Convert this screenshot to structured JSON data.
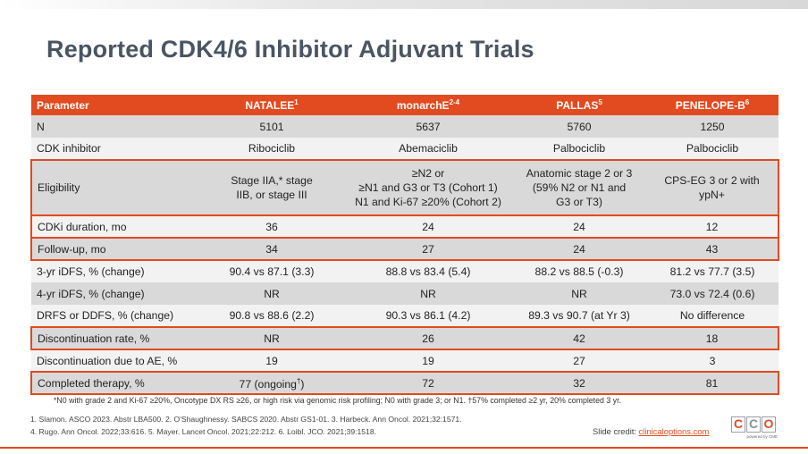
{
  "title": "Reported CDK4/6 Inhibitor Adjuvant Trials",
  "columns": [
    {
      "label": "Parameter",
      "sup": ""
    },
    {
      "label": "NATALEE",
      "sup": "1"
    },
    {
      "label": "monarchE",
      "sup": "2-4"
    },
    {
      "label": "PALLAS",
      "sup": "5"
    },
    {
      "label": "PENELOPE-B",
      "sup": "6"
    }
  ],
  "rows": [
    {
      "param": "N",
      "values": [
        "5101",
        "5637",
        "5760",
        "1250"
      ]
    },
    {
      "param": "CDK inhibitor",
      "values": [
        "Ribociclib",
        "Abemaciclib",
        "Palbociclib",
        "Palbociclib"
      ]
    },
    {
      "param": "Eligibility",
      "values": [
        [
          "Stage IIA,* stage",
          "IIB, or stage III"
        ],
        [
          "≥N2 or",
          "≥N1 and G3 or T3 (Cohort 1)",
          "N1 and Ki-67 ≥20% (Cohort 2)"
        ],
        [
          "Anatomic stage 2 or 3",
          "(59% N2 or N1 and",
          "G3 or T3)"
        ],
        [
          "CPS-EG 3 or 2 with",
          "ypN+"
        ]
      ]
    },
    {
      "param": "CDKi duration, mo",
      "values": [
        "36",
        "24",
        "24",
        "12"
      ]
    },
    {
      "param": "Follow-up, mo",
      "values": [
        "34",
        "27",
        "24",
        "43"
      ]
    },
    {
      "param": "3-yr iDFS, % (change)",
      "values": [
        "90.4 vs 87.1 (3.3)",
        "88.8 vs 83.4 (5.4)",
        "88.2 vs 88.5 (-0.3)",
        "81.2 vs 77.7 (3.5)"
      ]
    },
    {
      "param": "4-yr iDFS, % (change)",
      "values": [
        "NR",
        "NR",
        "NR",
        "73.0 vs 72.4 (0.6)"
      ]
    },
    {
      "param": "DRFS or DDFS, % (change)",
      "values": [
        "90.8 vs 88.6 (2.2)",
        "90.3 vs 86.1 (4.2)",
        "89.3 vs 90.7 (at Yr 3)",
        "No difference"
      ]
    },
    {
      "param": "Discontinuation rate, %",
      "values": [
        "NR",
        "26",
        "42",
        "18"
      ]
    },
    {
      "param": "Discontinuation due to AE, %",
      "values": [
        "19",
        "19",
        "27",
        "3"
      ]
    },
    {
      "param": "Completed therapy, %",
      "values": [
        "77 (ongoing",
        "72",
        "32",
        "81"
      ],
      "natalee_sup": "†",
      "natalee_suffix": ")"
    }
  ],
  "footnote": "*N0 with grade 2 and Ki-67 ≥20%, Oncotype DX RS ≥26, or high risk via genomic risk profiling; N0 with grade 3; or N1. †57% completed ≥2 yr, 20% completed 3 yr.",
  "references": [
    "1. Slamon. ASCO 2023. Abstr LBA500. 2. O'Shaughnessy. SABCS 2020. Abstr GS1-01. 3. Harbeck. Ann Oncol. 2021;32:1571.",
    "4. Rugo. Ann Oncol. 2022;33:616. 5. Mayer. Lancet Oncol. 2021;22:212. 6. Loibl. JCO. 2021;39:1518."
  ],
  "credit_prefix": "Slide credit: ",
  "credit_link": "clinicaloptions.com",
  "logo": {
    "letters": [
      "C",
      "C",
      "O"
    ],
    "powered": "powered by CME"
  },
  "colors": {
    "accent": "#e24a1f",
    "row_dark": "#d9d9d9",
    "row_light": "#f2f2f2",
    "title": "#4a5563"
  }
}
